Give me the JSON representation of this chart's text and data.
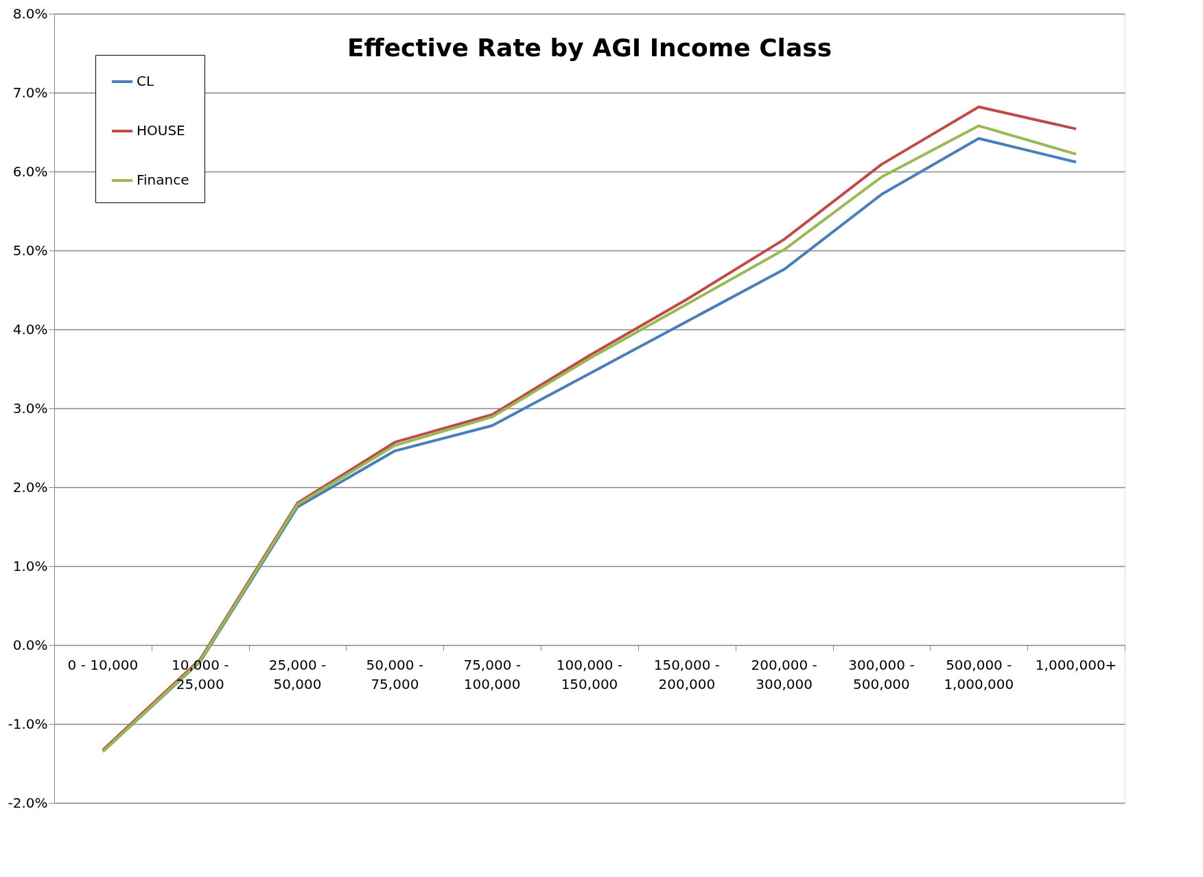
{
  "chart_data": {
    "type": "line",
    "title": "Effective Rate by AGI Income Class",
    "categories": [
      "0 - 10,000",
      "10,000 - 25,000",
      "25,000 - 50,000",
      "50,000 - 75,000",
      "75,000 - 100,000",
      "100,000 - 150,000",
      "150,000 - 200,000",
      "200,000 - 300,000",
      "300,000 - 500,000",
      "500,000 - 1,000,000",
      "1,000,000+"
    ],
    "series": [
      {
        "name": "CL",
        "color": "#4a7ebb",
        "values": [
          -1.35,
          -0.21,
          1.75,
          2.46,
          2.78,
          3.44,
          4.1,
          4.76,
          5.71,
          6.42,
          6.12
        ]
      },
      {
        "name": "HOUSE",
        "color": "#be4b48",
        "values": [
          -1.33,
          -0.18,
          1.8,
          2.57,
          2.92,
          3.67,
          4.38,
          5.14,
          6.09,
          6.82,
          6.54
        ]
      },
      {
        "name": "Finance",
        "color": "#98b954",
        "values": [
          -1.35,
          -0.2,
          1.78,
          2.53,
          2.89,
          3.63,
          4.32,
          5.01,
          5.93,
          6.58,
          6.22
        ]
      }
    ],
    "ylim": [
      -2,
      8
    ],
    "yticks": [
      {
        "value": -2,
        "label": "-2.0%"
      },
      {
        "value": -1,
        "label": "-1.0%"
      },
      {
        "value": 0,
        "label": "0.0%"
      },
      {
        "value": 1,
        "label": "1.0%"
      },
      {
        "value": 2,
        "label": "2.0%"
      },
      {
        "value": 3,
        "label": "3.0%"
      },
      {
        "value": 4,
        "label": "4.0%"
      },
      {
        "value": 5,
        "label": "5.0%"
      },
      {
        "value": 6,
        "label": "6.0%"
      },
      {
        "value": 7,
        "label": "7.0%"
      },
      {
        "value": 8,
        "label": "8.0%"
      }
    ],
    "grid": "y",
    "legend": "top left",
    "marker": "none",
    "line_style": "solid"
  }
}
